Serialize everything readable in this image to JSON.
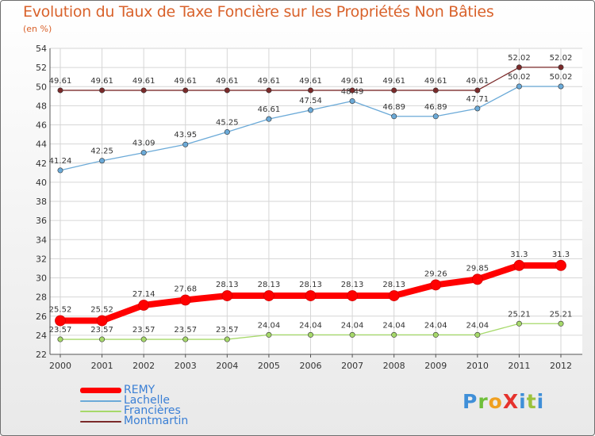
{
  "title": "Evolution du Taux de Taxe Foncière sur les Propriétés Non Bâties",
  "subtitle": "(en %)",
  "logo": {
    "text": "ProXiti"
  },
  "chart_data": {
    "type": "line",
    "x": [
      "2000",
      "2001",
      "2002",
      "2003",
      "2004",
      "2005",
      "2006",
      "2007",
      "2008",
      "2009",
      "2010",
      "2011",
      "2012"
    ],
    "ylim": [
      22,
      54
    ],
    "yticks": [
      22,
      24,
      26,
      28,
      30,
      32,
      34,
      36,
      38,
      40,
      42,
      44,
      46,
      48,
      50,
      52,
      54
    ],
    "grid": true,
    "legend_position": "bottom-left",
    "series": [
      {
        "name": "REMY",
        "color": "#ff0000",
        "values": [
          25.52,
          25.52,
          27.14,
          27.68,
          28.13,
          28.13,
          28.13,
          28.13,
          28.13,
          29.26,
          29.85,
          31.3,
          31.3
        ],
        "labels": [
          "25.52",
          "25.52",
          "27.14",
          "27.68",
          "28.13",
          "28.13",
          "28.13",
          "28.13",
          "28.13",
          "29.26",
          "29.85",
          "31.3",
          "31.3"
        ]
      },
      {
        "name": "Lachelle",
        "color": "#6baad8",
        "values": [
          41.24,
          42.25,
          43.09,
          43.95,
          45.25,
          46.61,
          47.54,
          48.49,
          46.89,
          46.89,
          47.71,
          50.02,
          50.02
        ],
        "labels": [
          "41.24",
          "42.25",
          "43.09",
          "43.95",
          "45.25",
          "46.61",
          "47.54",
          "48.49",
          "46.89",
          "46.89",
          "47.71",
          "50.02",
          "50.02"
        ]
      },
      {
        "name": "Francières",
        "color": "#a6d96a",
        "values": [
          23.57,
          23.57,
          23.57,
          23.57,
          23.57,
          24.04,
          24.04,
          24.04,
          24.04,
          24.04,
          24.04,
          25.21,
          25.21
        ],
        "labels": [
          "23.57",
          "23.57",
          "23.57",
          "23.57",
          "23.57",
          "24.04",
          "24.04",
          "24.04",
          "24.04",
          "24.04",
          "24.04",
          "25.21",
          "25.21"
        ]
      },
      {
        "name": "Montmartin",
        "color": "#7b2a2a",
        "values": [
          49.61,
          49.61,
          49.61,
          49.61,
          49.61,
          49.61,
          49.61,
          49.61,
          49.61,
          49.61,
          49.61,
          52.02,
          52.02
        ],
        "labels": [
          "49.61",
          "49.61",
          "49.61",
          "49.61",
          "49.61",
          "49.61",
          "49.61",
          "49.61",
          "49.61",
          "49.61",
          "49.61",
          "52.02",
          "52.02"
        ]
      }
    ]
  }
}
